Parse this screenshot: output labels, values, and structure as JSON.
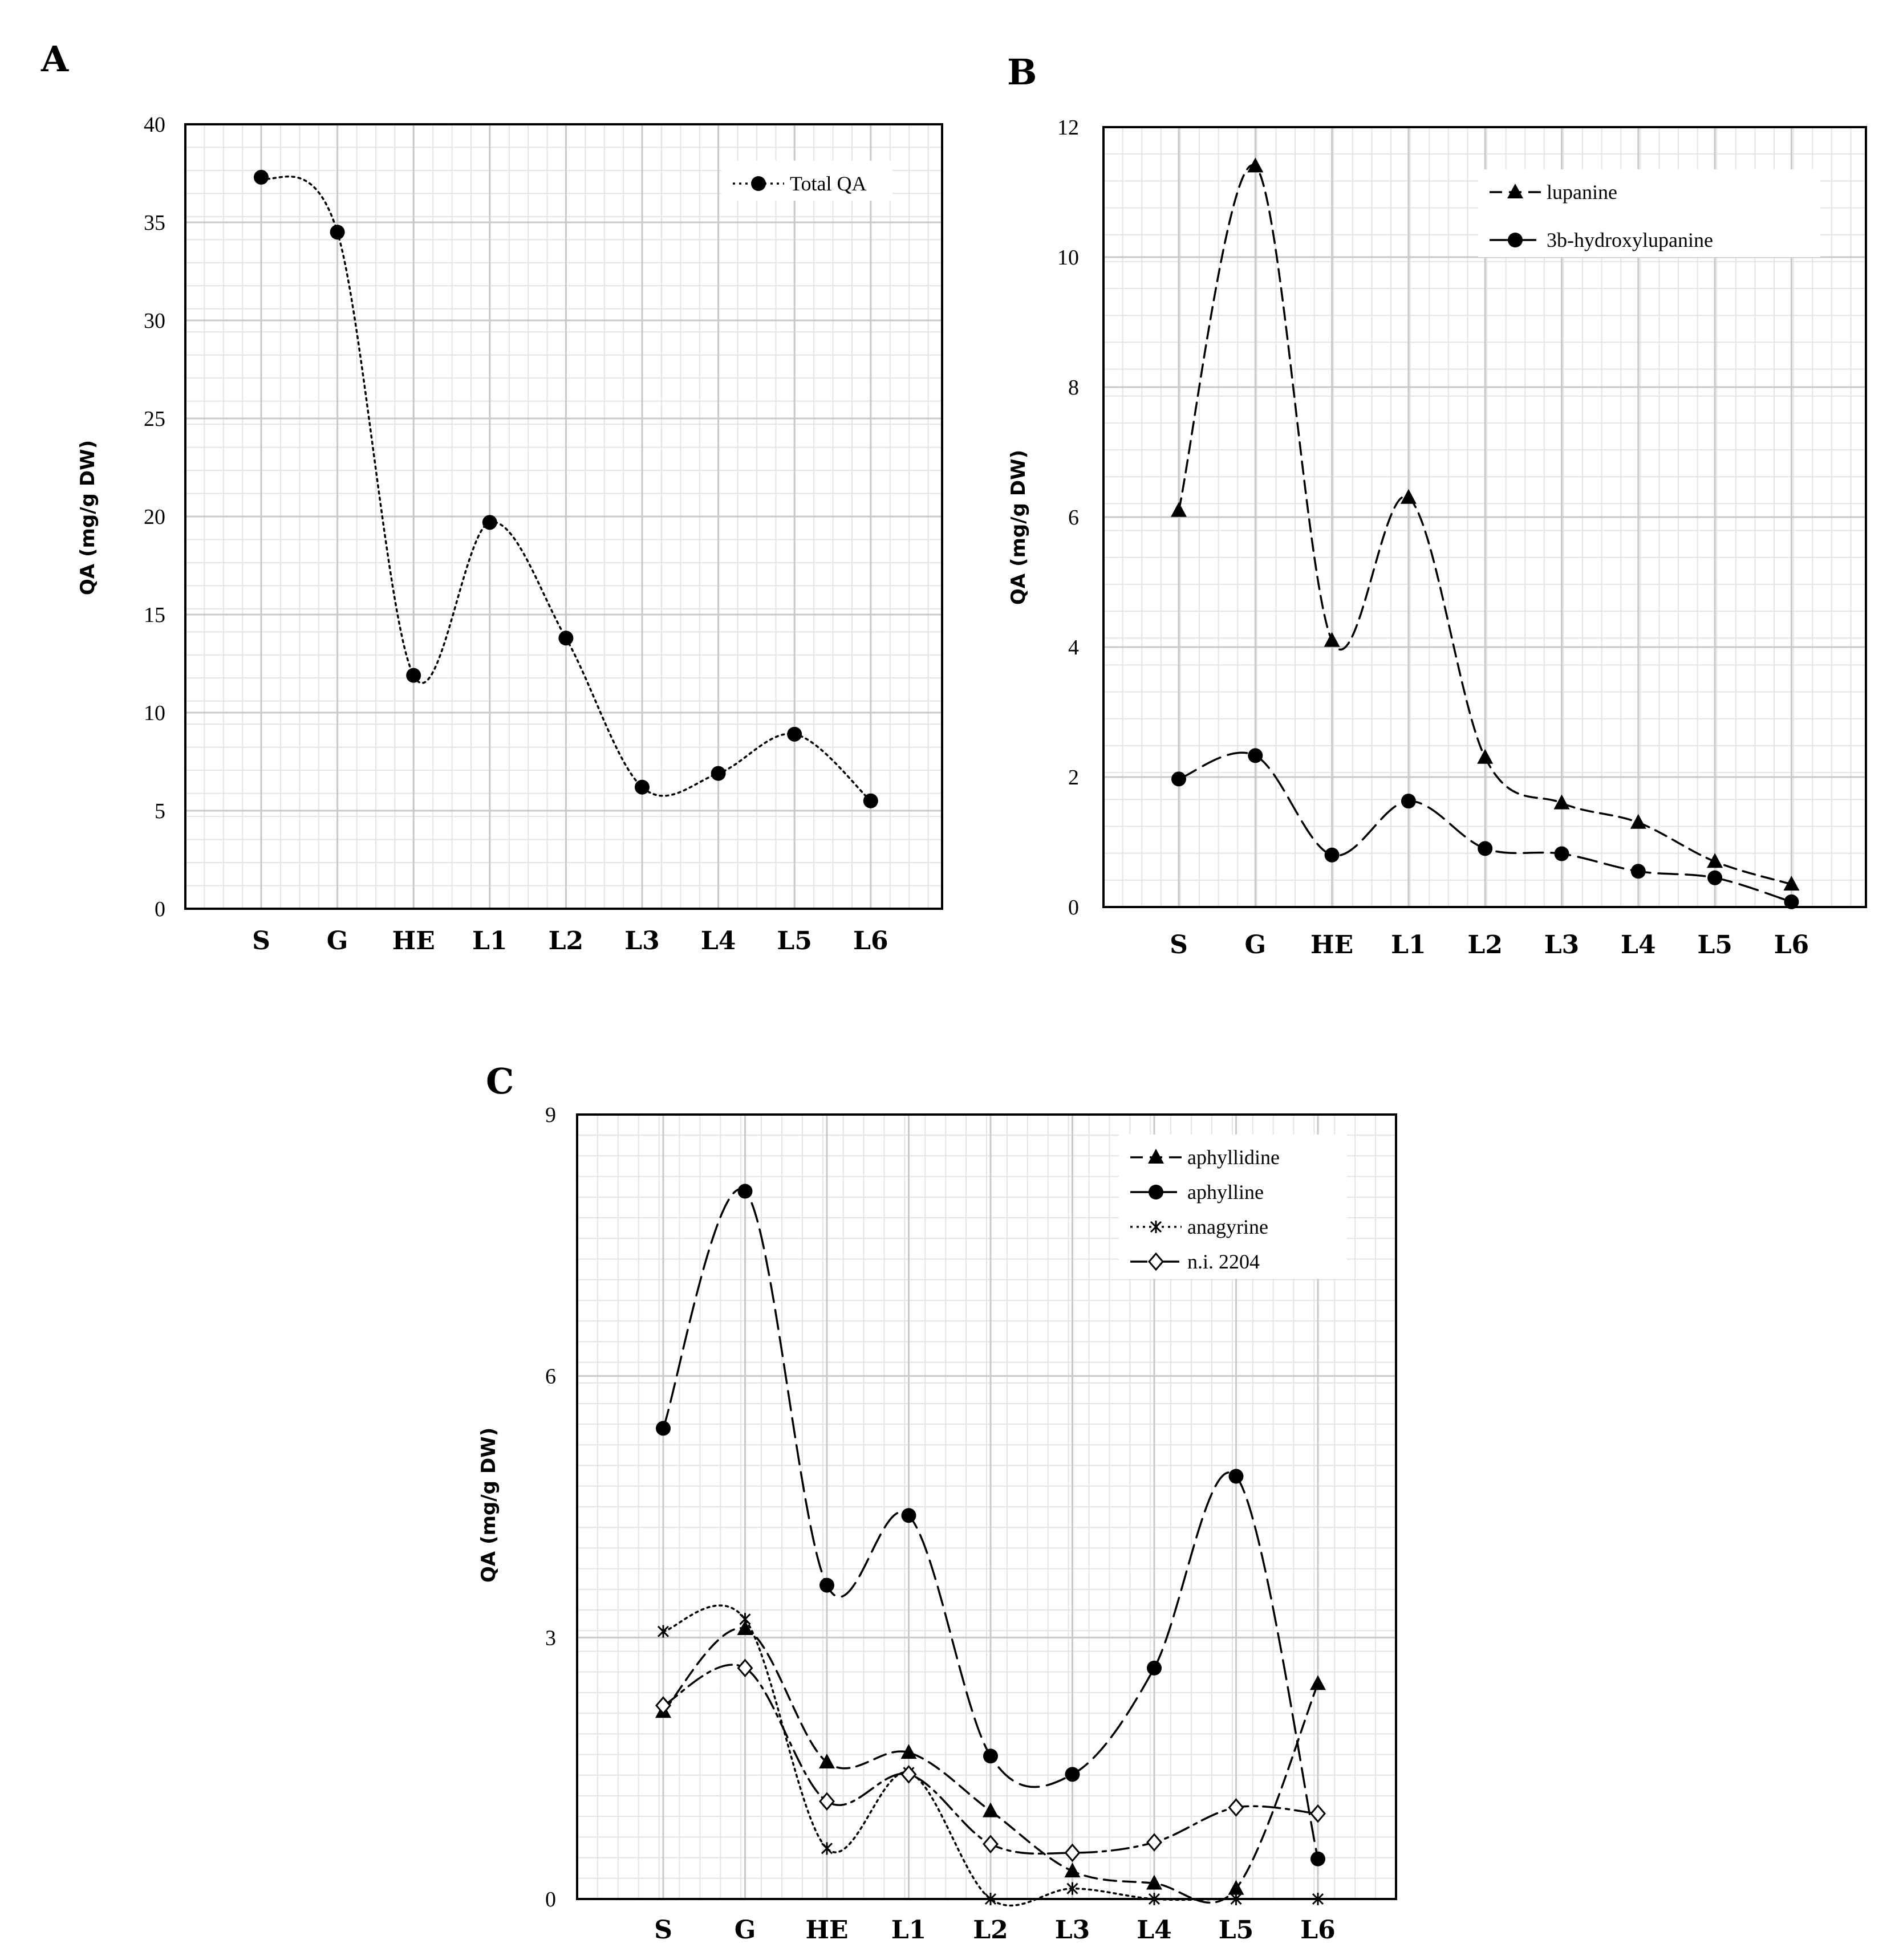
{
  "chart_data": [
    {
      "panel": "A",
      "type": "line",
      "categories": [
        "S",
        "G",
        "HE",
        "L1",
        "L2",
        "L3",
        "L4",
        "L5",
        "L6"
      ],
      "ylabel": "QA (mg/g DW)",
      "ylim": [
        0,
        40
      ],
      "yticks": [
        0,
        5,
        10,
        15,
        20,
        25,
        30,
        35,
        40
      ],
      "grid": true,
      "legend_position": "top-right",
      "series": [
        {
          "name": "Total QA",
          "marker": "circle",
          "dash": "dotted",
          "values": [
            37.3,
            34.5,
            11.9,
            19.7,
            13.8,
            6.2,
            6.9,
            8.9,
            5.5
          ]
        }
      ]
    },
    {
      "panel": "B",
      "type": "line",
      "categories": [
        "S",
        "G",
        "HE",
        "L1",
        "L2",
        "L3",
        "L4",
        "L5",
        "L6"
      ],
      "ylabel": "QA (mg/g DW)",
      "ylim": [
        0,
        12
      ],
      "yticks": [
        0,
        2,
        4,
        6,
        8,
        10,
        12
      ],
      "grid": true,
      "legend_position": "top-right",
      "series": [
        {
          "name": "lupanine",
          "marker": "triangle",
          "dash": "dashed",
          "values": [
            6.1,
            11.4,
            4.1,
            6.3,
            2.3,
            1.6,
            1.3,
            0.7,
            0.35
          ]
        },
        {
          "name": "3b-hydroxylupanine",
          "marker": "circle",
          "dash": "longdash",
          "values": [
            1.97,
            2.33,
            0.8,
            1.63,
            0.9,
            0.82,
            0.55,
            0.45,
            0.08
          ]
        }
      ]
    },
    {
      "panel": "C",
      "type": "line",
      "categories": [
        "S",
        "G",
        "HE",
        "L1",
        "L2",
        "L3",
        "L4",
        "L5",
        "L6"
      ],
      "ylabel": "QA (mg/g DW)",
      "ylim": [
        0,
        9
      ],
      "yticks": [
        0,
        3,
        6,
        9
      ],
      "grid": true,
      "legend_position": "top-right",
      "series": [
        {
          "name": "aphyllidine",
          "marker": "triangle",
          "dash": "dashed",
          "values": [
            2.15,
            3.1,
            1.57,
            1.68,
            1.01,
            0.32,
            0.18,
            0.12,
            2.47
          ]
        },
        {
          "name": "aphylline",
          "marker": "circle",
          "dash": "longdash",
          "values": [
            5.4,
            8.12,
            3.6,
            4.4,
            1.64,
            1.43,
            2.65,
            4.85,
            0.46
          ]
        },
        {
          "name": "anagyrine",
          "marker": "star",
          "dash": "dotted",
          "values": [
            3.07,
            3.21,
            0.58,
            1.45,
            0.0,
            0.12,
            0.0,
            0.0,
            0.0
          ]
        },
        {
          "name": "n.i. 2204",
          "marker": "diamond",
          "dash": "dashdot",
          "values": [
            2.22,
            2.65,
            1.12,
            1.43,
            0.63,
            0.53,
            0.65,
            1.05,
            0.98
          ]
        }
      ]
    }
  ],
  "panel_labels": [
    "A",
    "B",
    "C"
  ],
  "colors": {
    "line": "#000000",
    "grid_minor": "#e4e4e4",
    "grid_major": "#c9c9c9"
  }
}
